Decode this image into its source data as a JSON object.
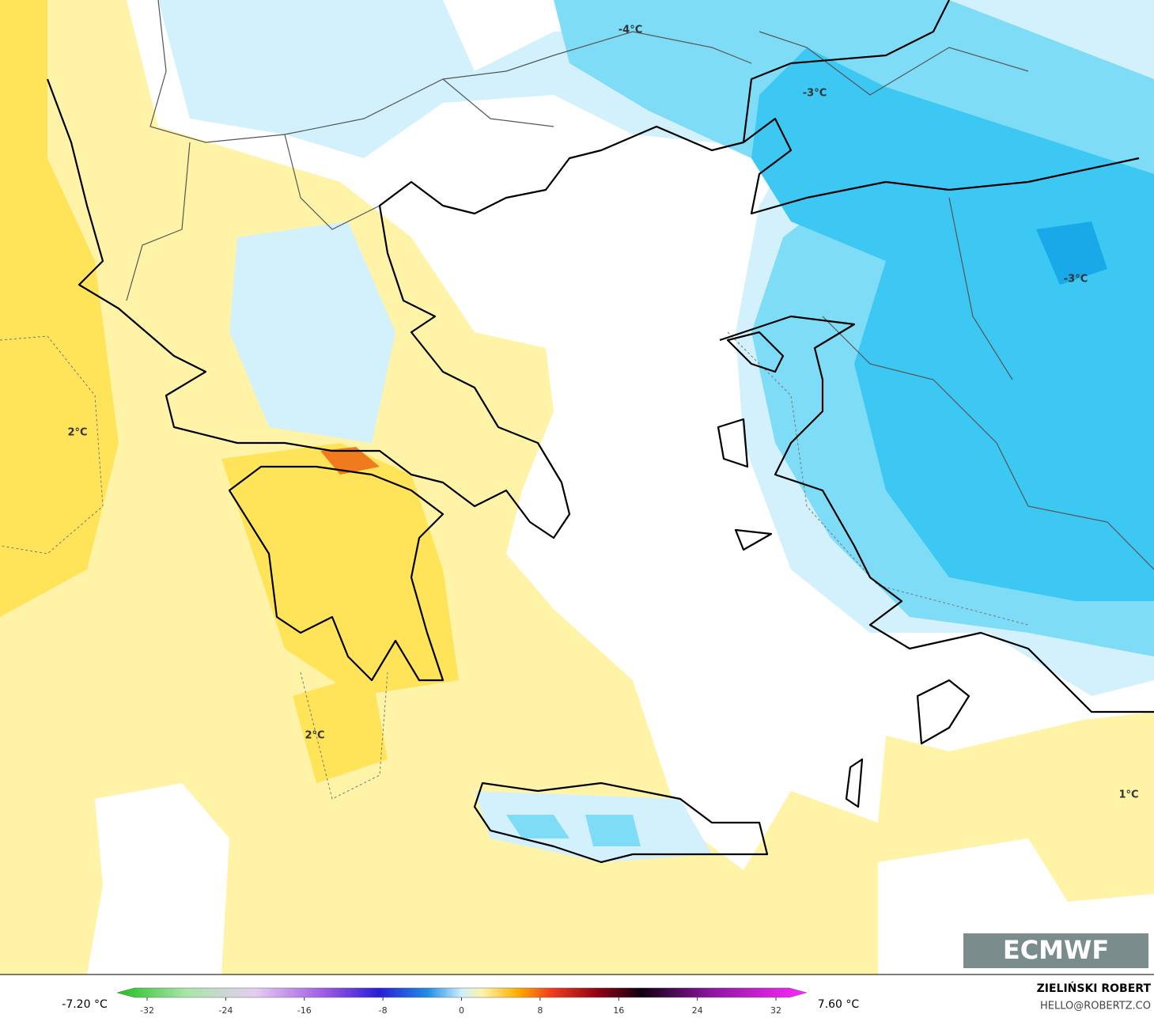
{
  "map": {
    "labels": [
      "-4°C",
      "-3°C",
      "-3°C",
      "2°C",
      "2°C",
      "1°C"
    ]
  },
  "logo": "ECMWF",
  "legend": {
    "min_label": "-7.20 °C",
    "max_label": "7.60 °C",
    "ticks": [
      -32,
      -24,
      -16,
      -8,
      0,
      8,
      16,
      24,
      32
    ]
  },
  "credits": {
    "name": "ZIELIŃSKI ROBERT",
    "email": "HELLO@ROBERTZ.CO"
  }
}
